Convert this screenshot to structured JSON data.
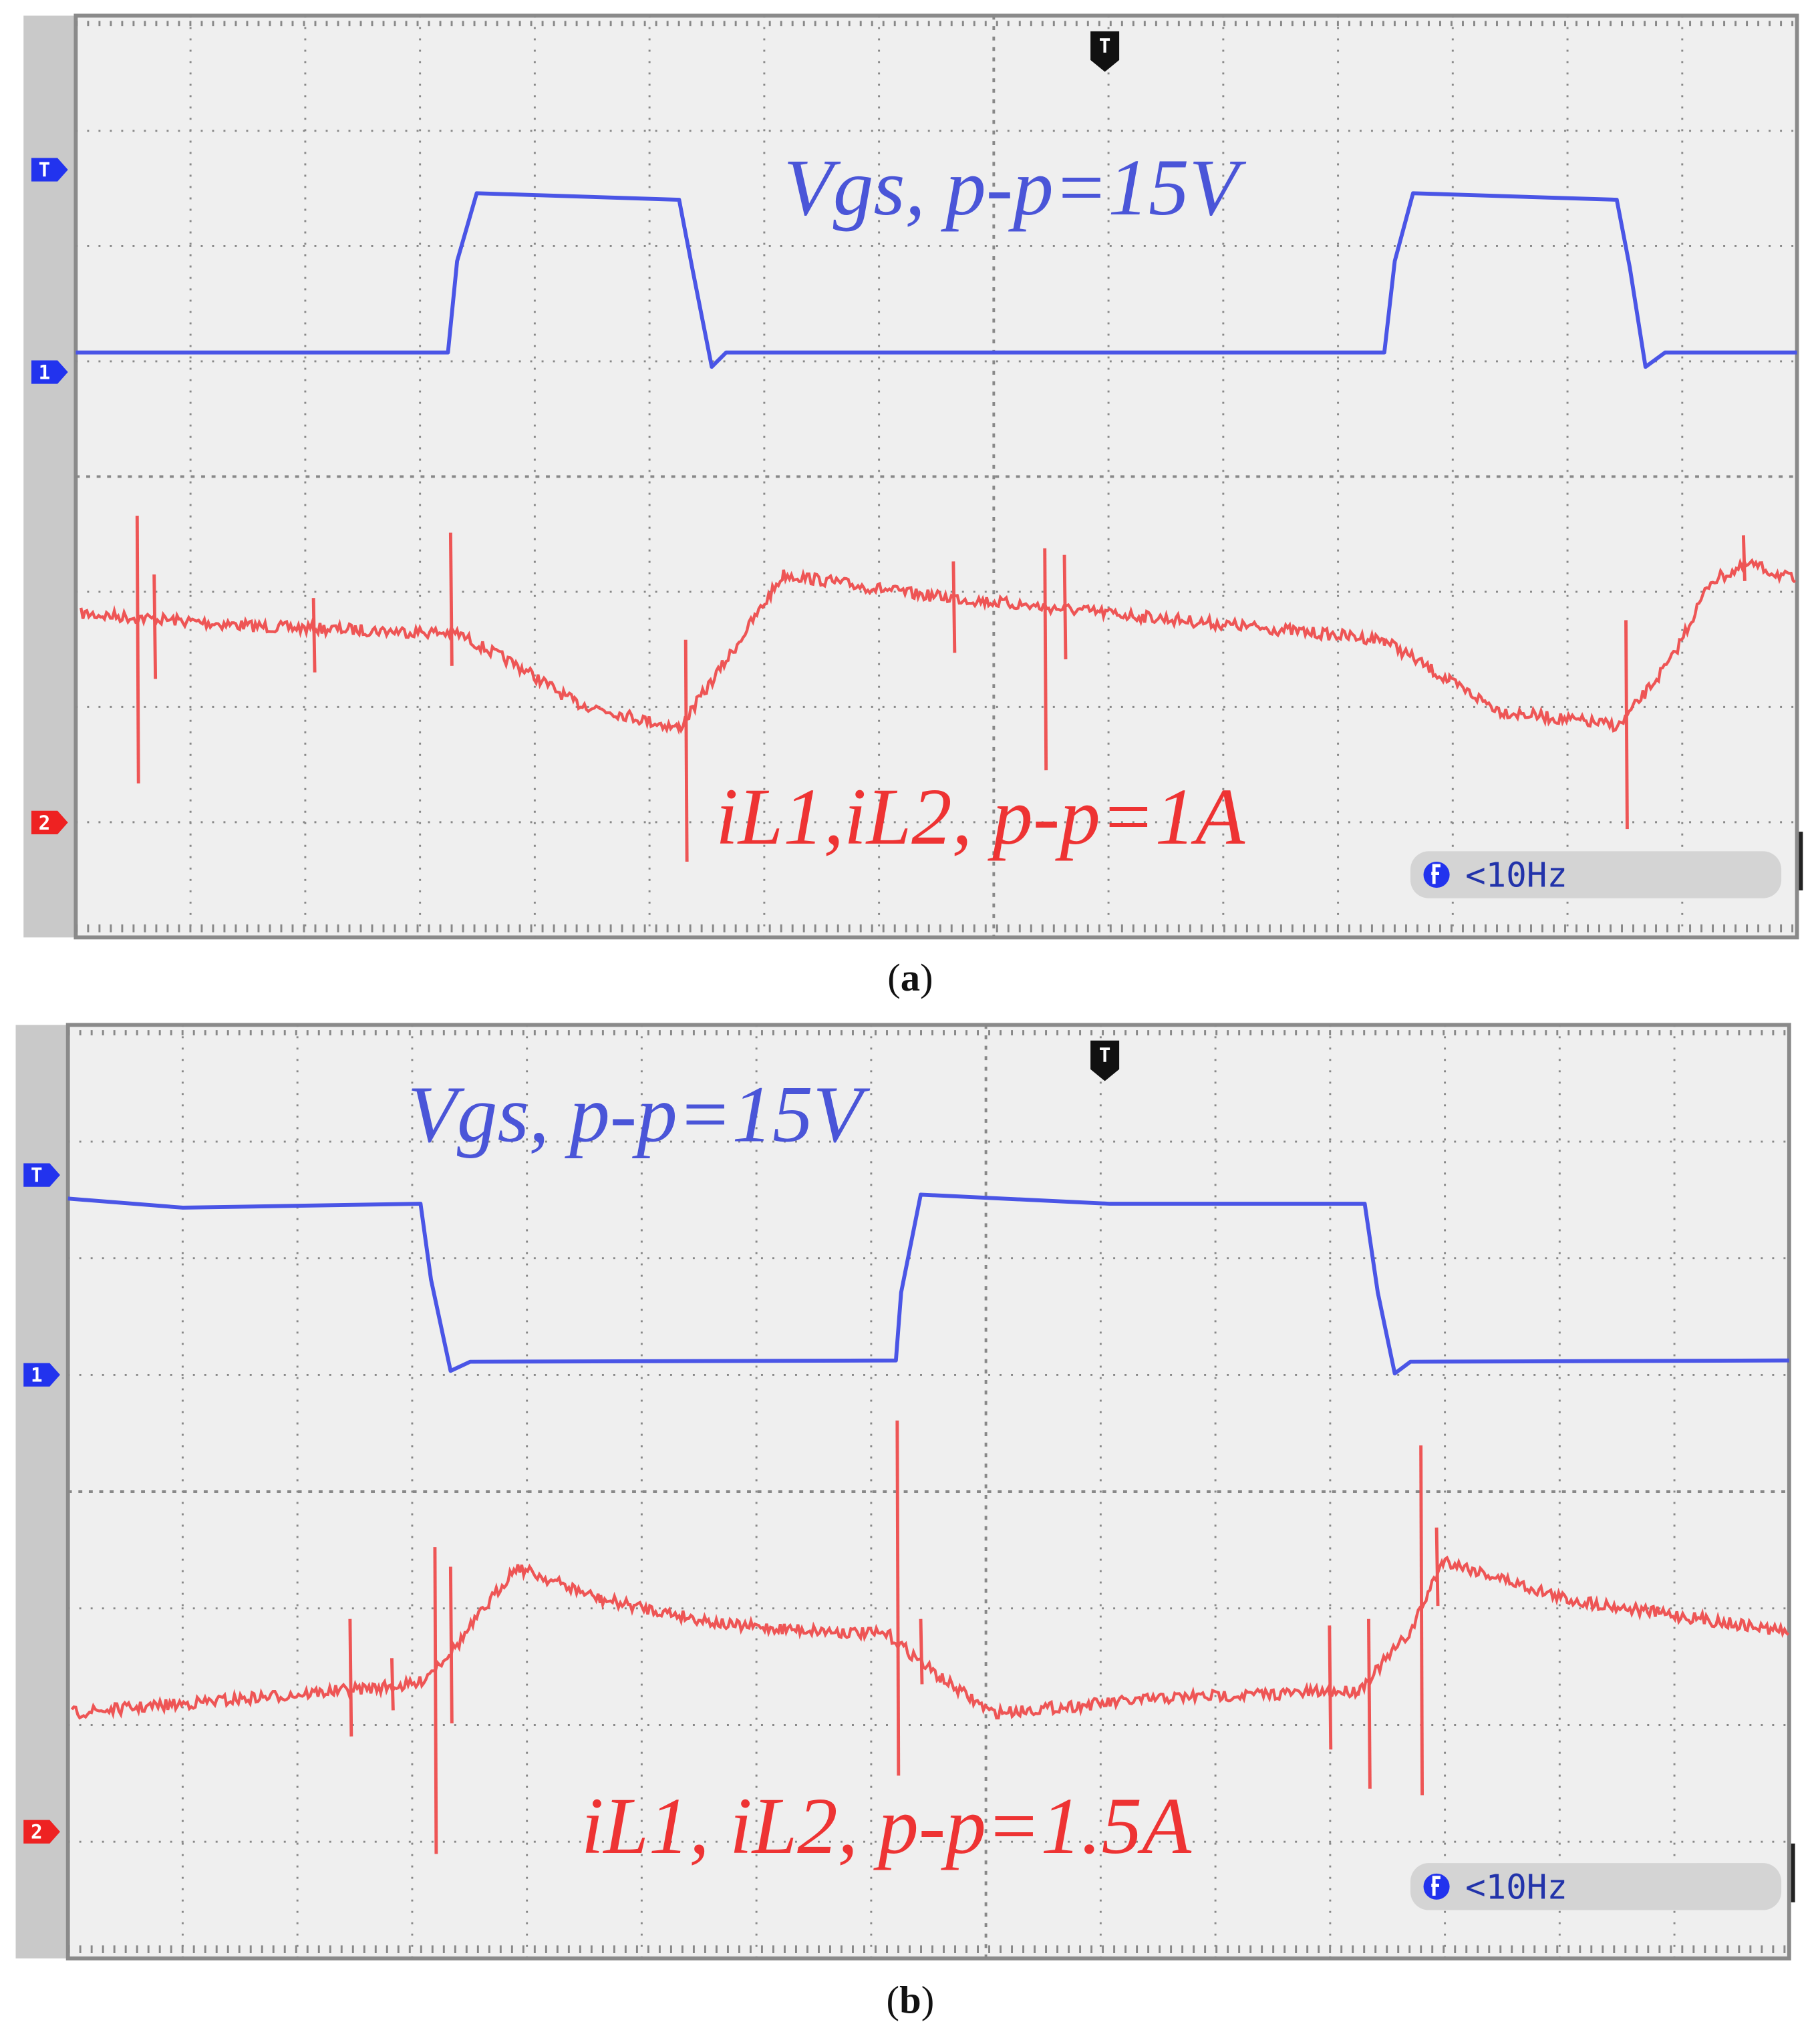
{
  "panels": [
    {
      "annotations": {
        "voltage": "Vgs, p-p=15V",
        "current": "iL1,iL2, p-p=1A"
      },
      "markers": {
        "trigger": "T",
        "level": "T",
        "channel1": "1",
        "channel2": "2"
      },
      "filter": "<10Hz",
      "caption": {
        "open": "(",
        "letter": "a",
        "close": ")"
      }
    },
    {
      "annotations": {
        "voltage": "Vgs, p-p=15V",
        "current": "iL1, iL2, p-p=1.5A"
      },
      "markers": {
        "trigger": "T",
        "level": "T",
        "channel1": "1",
        "channel2": "2"
      },
      "filter": "<10Hz",
      "caption": {
        "open": "(",
        "letter": "b",
        "close": ")"
      }
    }
  ]
}
